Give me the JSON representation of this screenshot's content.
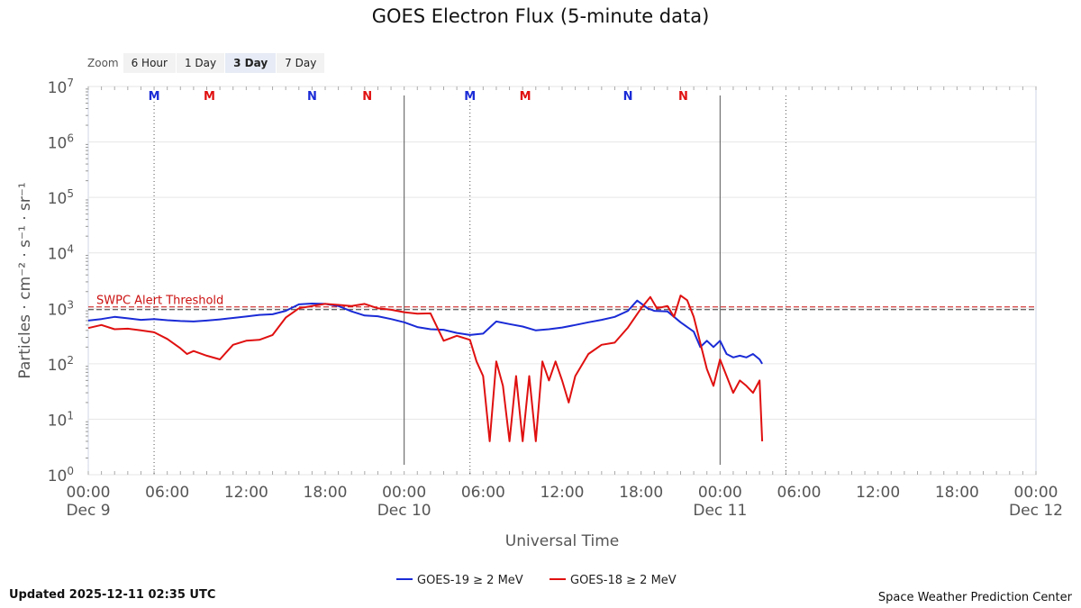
{
  "chart_data": {
    "type": "line",
    "title": "GOES Electron Flux (5-minute data)",
    "ylabel": "Particles · cm⁻² · s⁻¹ · sr⁻¹",
    "xlabel": "Universal Time",
    "y_scale": "log",
    "ylim": [
      1,
      10000000
    ],
    "y_ticks": [
      {
        "value": 1,
        "base": "10",
        "exp": "0"
      },
      {
        "value": 10,
        "base": "10",
        "exp": "1"
      },
      {
        "value": 100,
        "base": "10",
        "exp": "2"
      },
      {
        "value": 1000,
        "base": "10",
        "exp": "3"
      },
      {
        "value": 10000,
        "base": "10",
        "exp": "4"
      },
      {
        "value": 100000,
        "base": "10",
        "exp": "5"
      },
      {
        "value": 1000000,
        "base": "10",
        "exp": "6"
      },
      {
        "value": 10000000,
        "base": "10",
        "exp": "7"
      }
    ],
    "x_range_hours": [
      0,
      72
    ],
    "x_ticks": [
      {
        "hour": 0,
        "time": "00:00",
        "date": "Dec 9"
      },
      {
        "hour": 6,
        "time": "06:00",
        "date": ""
      },
      {
        "hour": 12,
        "time": "12:00",
        "date": ""
      },
      {
        "hour": 18,
        "time": "18:00",
        "date": ""
      },
      {
        "hour": 24,
        "time": "00:00",
        "date": "Dec 10"
      },
      {
        "hour": 30,
        "time": "06:00",
        "date": ""
      },
      {
        "hour": 36,
        "time": "12:00",
        "date": ""
      },
      {
        "hour": 42,
        "time": "18:00",
        "date": ""
      },
      {
        "hour": 48,
        "time": "00:00",
        "date": "Dec 11"
      },
      {
        "hour": 54,
        "time": "06:00",
        "date": ""
      },
      {
        "hour": 60,
        "time": "12:00",
        "date": ""
      },
      {
        "hour": 66,
        "time": "18:00",
        "date": ""
      },
      {
        "hour": 72,
        "time": "00:00",
        "date": "Dec 12"
      }
    ],
    "day_boundaries_hours": [
      24,
      48
    ],
    "local_time_markers": [
      {
        "label": "M",
        "hour": 5,
        "color": "#1a2bd6",
        "dotted": true
      },
      {
        "label": "M",
        "hour": 9.2,
        "color": "#e01010",
        "dotted": false
      },
      {
        "label": "N",
        "hour": 17,
        "color": "#1a2bd6",
        "dotted": false
      },
      {
        "label": "N",
        "hour": 21.2,
        "color": "#e01010",
        "dotted": false
      },
      {
        "label": "M",
        "hour": 29,
        "color": "#1a2bd6",
        "dotted": true
      },
      {
        "label": "M",
        "hour": 33.2,
        "color": "#e01010",
        "dotted": false
      },
      {
        "label": "N",
        "hour": 41,
        "color": "#1a2bd6",
        "dotted": false
      },
      {
        "label": "N",
        "hour": 45.2,
        "color": "#e01010",
        "dotted": false
      }
    ],
    "extra_dotted_lines_hours": [
      53
    ],
    "threshold": {
      "label": "SWPC Alert Threshold",
      "value": 1000,
      "color": "#cc1111"
    },
    "series": [
      {
        "name": "GOES-19 ≥ 2 MeV",
        "color": "#1a2bd6",
        "points": [
          [
            0,
            600
          ],
          [
            1,
            640
          ],
          [
            2,
            700
          ],
          [
            3,
            660
          ],
          [
            4,
            620
          ],
          [
            5,
            640
          ],
          [
            6,
            610
          ],
          [
            7,
            590
          ],
          [
            8,
            580
          ],
          [
            9,
            600
          ],
          [
            10,
            630
          ],
          [
            11,
            670
          ],
          [
            12,
            710
          ],
          [
            13,
            760
          ],
          [
            14,
            780
          ],
          [
            15,
            900
          ],
          [
            16,
            1180
          ],
          [
            17,
            1220
          ],
          [
            18,
            1200
          ],
          [
            19,
            1100
          ],
          [
            20,
            880
          ],
          [
            21,
            740
          ],
          [
            22,
            720
          ],
          [
            23,
            640
          ],
          [
            24,
            560
          ],
          [
            25,
            460
          ],
          [
            26,
            420
          ],
          [
            27,
            410
          ],
          [
            28,
            360
          ],
          [
            29,
            330
          ],
          [
            30,
            350
          ],
          [
            31,
            580
          ],
          [
            32,
            520
          ],
          [
            33,
            470
          ],
          [
            34,
            400
          ],
          [
            35,
            420
          ],
          [
            36,
            450
          ],
          [
            37,
            500
          ],
          [
            38,
            560
          ],
          [
            39,
            620
          ],
          [
            40,
            700
          ],
          [
            41,
            900
          ],
          [
            41.7,
            1380
          ],
          [
            42.5,
            1000
          ],
          [
            43,
            900
          ],
          [
            44,
            880
          ],
          [
            45,
            560
          ],
          [
            46,
            380
          ],
          [
            46.5,
            200
          ],
          [
            47,
            260
          ],
          [
            47.5,
            200
          ],
          [
            48,
            260
          ],
          [
            48.5,
            150
          ],
          [
            49,
            130
          ],
          [
            49.5,
            140
          ],
          [
            50,
            130
          ],
          [
            50.5,
            150
          ],
          [
            51,
            120
          ],
          [
            51.2,
            100
          ]
        ]
      },
      {
        "name": "GOES-18 ≥ 2 MeV",
        "color": "#e01010",
        "points": [
          [
            0,
            440
          ],
          [
            1,
            500
          ],
          [
            2,
            420
          ],
          [
            3,
            430
          ],
          [
            4,
            400
          ],
          [
            5,
            370
          ],
          [
            6,
            280
          ],
          [
            7,
            190
          ],
          [
            7.5,
            150
          ],
          [
            8,
            170
          ],
          [
            9,
            140
          ],
          [
            10,
            120
          ],
          [
            11,
            220
          ],
          [
            12,
            260
          ],
          [
            13,
            270
          ],
          [
            14,
            330
          ],
          [
            15,
            680
          ],
          [
            16,
            1000
          ],
          [
            17,
            1100
          ],
          [
            18,
            1200
          ],
          [
            19,
            1150
          ],
          [
            20,
            1100
          ],
          [
            21,
            1200
          ],
          [
            22,
            1000
          ],
          [
            23,
            940
          ],
          [
            24,
            850
          ],
          [
            25,
            800
          ],
          [
            26,
            810
          ],
          [
            27,
            260
          ],
          [
            28,
            320
          ],
          [
            29,
            270
          ],
          [
            29.5,
            110
          ],
          [
            30,
            60
          ],
          [
            30.5,
            4
          ],
          [
            31,
            110
          ],
          [
            31.5,
            40
          ],
          [
            32,
            4
          ],
          [
            32.5,
            60
          ],
          [
            33,
            4
          ],
          [
            33.5,
            60
          ],
          [
            34,
            4
          ],
          [
            34.5,
            110
          ],
          [
            35,
            50
          ],
          [
            35.5,
            110
          ],
          [
            36,
            50
          ],
          [
            36.5,
            20
          ],
          [
            37,
            60
          ],
          [
            38,
            150
          ],
          [
            39,
            220
          ],
          [
            40,
            240
          ],
          [
            41,
            450
          ],
          [
            42,
            1000
          ],
          [
            42.7,
            1600
          ],
          [
            43.2,
            1000
          ],
          [
            44,
            1100
          ],
          [
            44.5,
            700
          ],
          [
            45,
            1700
          ],
          [
            45.5,
            1400
          ],
          [
            46,
            700
          ],
          [
            47,
            80
          ],
          [
            47.5,
            40
          ],
          [
            48,
            120
          ],
          [
            48.5,
            60
          ],
          [
            49,
            30
          ],
          [
            49.5,
            50
          ],
          [
            50,
            40
          ],
          [
            50.5,
            30
          ],
          [
            51,
            50
          ],
          [
            51.2,
            4
          ]
        ]
      }
    ]
  },
  "zoom": {
    "label": "Zoom",
    "buttons": [
      "6 Hour",
      "1 Day",
      "3 Day",
      "7 Day"
    ],
    "active": "3 Day"
  },
  "footer": {
    "updated": "Updated 2025-12-11 02:35 UTC",
    "credit": "Space Weather Prediction Center"
  }
}
